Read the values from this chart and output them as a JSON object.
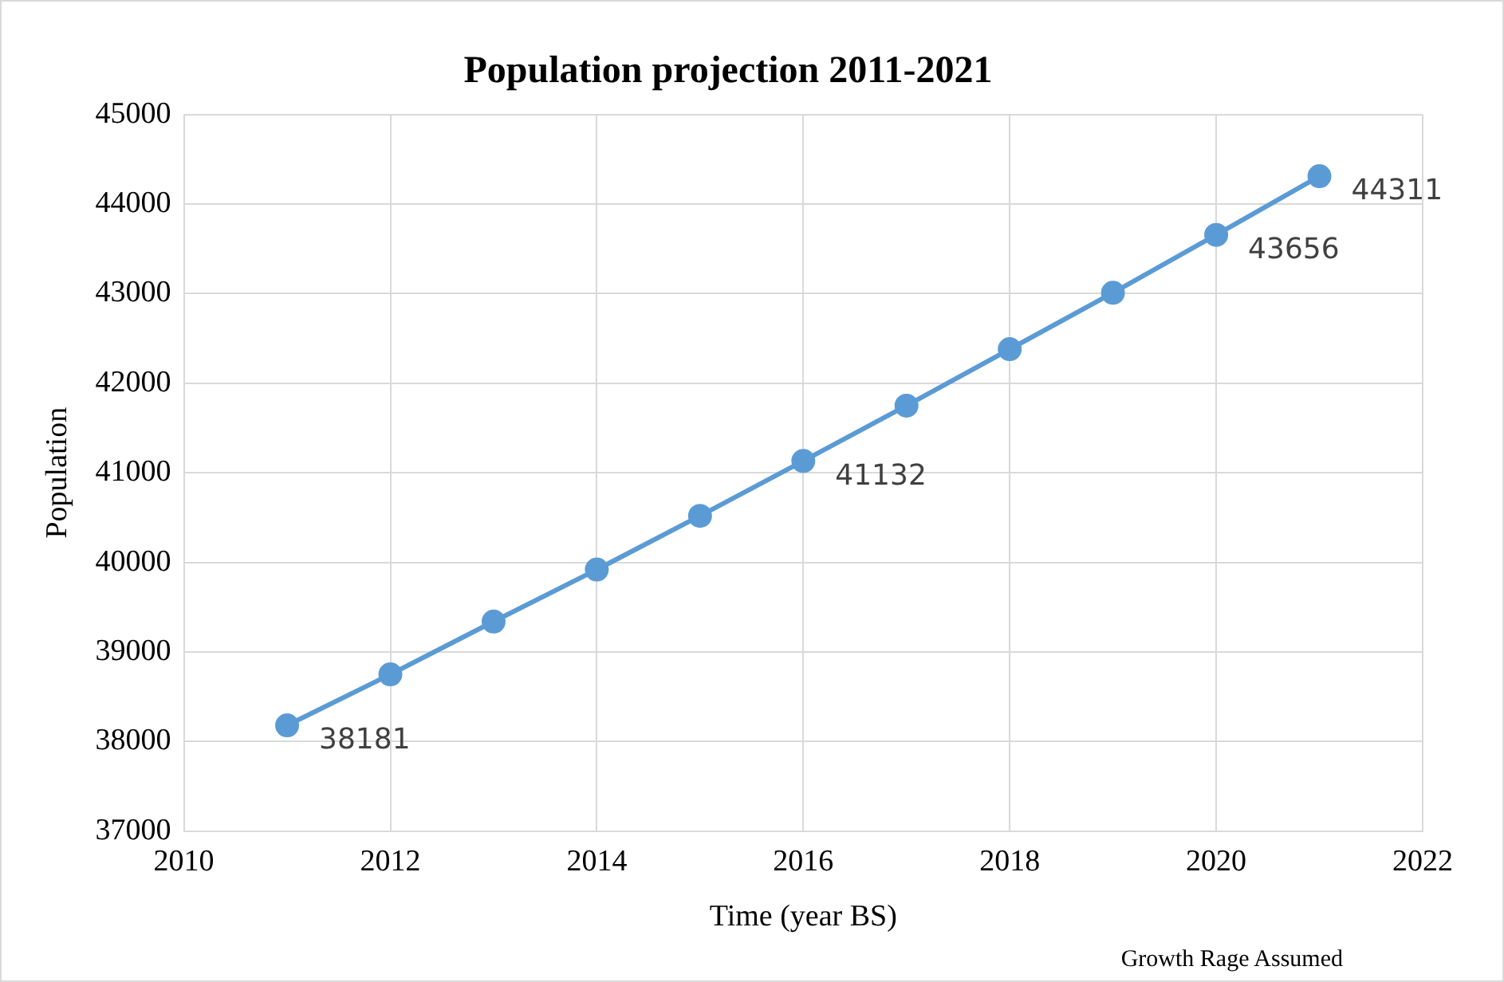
{
  "chart_data": {
    "type": "line",
    "title": "Population projection 2011-2021",
    "xlabel": "Time (year BS)",
    "ylabel": "Population",
    "x": [
      2011,
      2012,
      2013,
      2014,
      2015,
      2016,
      2017,
      2018,
      2019,
      2020,
      2021
    ],
    "series": [
      {
        "color": "#5b9bd5",
        "values": [
          38181,
          38750,
          39340,
          39920,
          40520,
          41132,
          41750,
          42380,
          43010,
          43656,
          44311
        ],
        "value_labels": [
          "38181",
          null,
          null,
          null,
          null,
          "41132",
          null,
          null,
          null,
          "43656",
          "44311"
        ]
      }
    ],
    "xlim": [
      2010,
      2022
    ],
    "xticks": [
      2010,
      2012,
      2014,
      2016,
      2018,
      2020,
      2022
    ],
    "ylim": [
      37000,
      45000
    ],
    "yticks": [
      37000,
      38000,
      39000,
      40000,
      41000,
      42000,
      43000,
      44000,
      45000
    ],
    "grid": true,
    "legend": false,
    "marker": "circle",
    "line_style": "solid",
    "annotations": [
      "Growth Rage Assumed"
    ]
  }
}
